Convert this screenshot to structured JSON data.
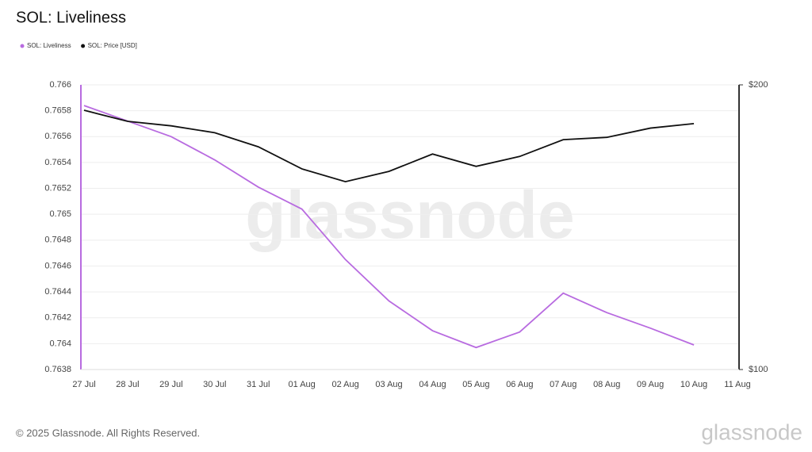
{
  "chart_data": {
    "type": "line",
    "title": "SOL: Liveliness",
    "categories": [
      "27 Jul",
      "28 Jul",
      "29 Jul",
      "30 Jul",
      "31 Jul",
      "01 Aug",
      "02 Aug",
      "03 Aug",
      "04 Aug",
      "05 Aug",
      "06 Aug",
      "07 Aug",
      "08 Aug",
      "09 Aug",
      "10 Aug",
      "11 Aug"
    ],
    "series": [
      {
        "name": "SOL: Liveliness",
        "color": "#b86be0",
        "values": [
          0.76584,
          0.76572,
          0.7656,
          0.76542,
          0.76521,
          0.76504,
          0.76465,
          0.76433,
          0.7641,
          0.76397,
          0.76409,
          0.76439,
          0.76424,
          0.76412,
          0.76399,
          null
        ]
      },
      {
        "name": "SOL: Price [USD]",
        "color": "#111111",
        "axis": "y2",
        "values": [
          188,
          183,
          181,
          178,
          172,
          163,
          158,
          162,
          169,
          164,
          168,
          175,
          176,
          180,
          182,
          null
        ]
      }
    ],
    "ylim": [
      0.7638,
      0.766
    ],
    "yticks": [
      0.7638,
      0.764,
      0.7642,
      0.7644,
      0.7646,
      0.7648,
      0.765,
      0.7652,
      0.7654,
      0.7656,
      0.7658,
      0.766
    ],
    "y2lim": [
      100,
      200
    ],
    "y2ticks": [
      {
        "value": 100,
        "label": "$100"
      },
      {
        "value": 200,
        "label": "$200"
      }
    ],
    "y2log": true,
    "grid": true,
    "legend": "top-left"
  },
  "watermark": "glassnode",
  "footer": {
    "copyright": "© 2025 Glassnode. All Rights Reserved.",
    "brand": "glassnode"
  }
}
